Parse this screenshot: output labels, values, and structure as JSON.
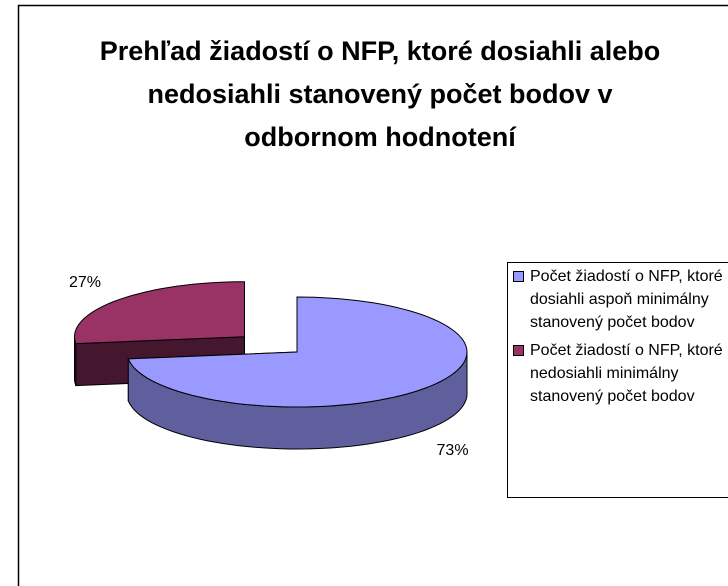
{
  "chart_data": {
    "type": "pie",
    "title": "Prehľad žiadostí o NFP, ktoré dosiahli alebo nedosiahli stanovený počet bodov v odbornom hodnotení",
    "categories": [
      "Počet žiadostí o NFP, ktoré dosiahli aspoň minimálny stanovený počet bodov",
      "Počet žiadostí o NFP, ktoré nedosiahli minimálny stanovený počet bodov"
    ],
    "values": [
      73,
      27
    ],
    "value_labels": [
      "73%",
      "27%"
    ],
    "colors": [
      "#9999ff",
      "#993366"
    ],
    "legend": "right"
  }
}
